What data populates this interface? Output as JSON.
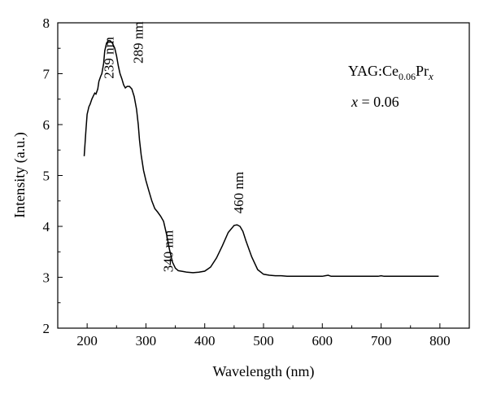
{
  "chart_data": {
    "type": "line",
    "title": "",
    "xlabel": "Wavelength (nm)",
    "ylabel": "Intensity (a.u.)",
    "xlim": [
      150,
      850
    ],
    "ylim": [
      2,
      8
    ],
    "x_ticks": [
      200,
      300,
      400,
      500,
      600,
      700,
      800
    ],
    "y_ticks": [
      2,
      3,
      4,
      5,
      6,
      7,
      8
    ],
    "grid": false,
    "legend": {
      "sample_prefix": "YAG:Ce",
      "sample_sub1": "0.06",
      "sample_mid": "Pr",
      "sample_sub2": "x",
      "x_var": "x",
      "x_eq": " = 0.06"
    },
    "annotations": [
      {
        "text": "239 nm",
        "x": 239,
        "y": 6.9
      },
      {
        "text": "289 nm",
        "x": 289,
        "y": 7.2
      },
      {
        "text": "340 nm",
        "x": 340,
        "y": 3.1
      },
      {
        "text": "460 nm",
        "x": 460,
        "y": 4.25
      }
    ],
    "series": [
      {
        "x": [
          195,
          198,
          200,
          203,
          205,
          208,
          210,
          213,
          215,
          218,
          220,
          223,
          225,
          228,
          230,
          233,
          236,
          239,
          243,
          247,
          250,
          253,
          256,
          259,
          262,
          265,
          268,
          272,
          276,
          280,
          284,
          287,
          289,
          292,
          296,
          300,
          305,
          310,
          315,
          320,
          325,
          330,
          335,
          340,
          345,
          350,
          355,
          360,
          365,
          370,
          380,
          390,
          400,
          410,
          420,
          430,
          440,
          450,
          455,
          460,
          465,
          470,
          480,
          490,
          500,
          510,
          520,
          530,
          540,
          550,
          560,
          570,
          580,
          590,
          600,
          605,
          610,
          615,
          620,
          640,
          660,
          680,
          695,
          700,
          705,
          710,
          730,
          750,
          770,
          790,
          798
        ],
        "y": [
          5.38,
          5.9,
          6.2,
          6.35,
          6.4,
          6.5,
          6.55,
          6.62,
          6.6,
          6.7,
          6.85,
          6.95,
          7.0,
          7.2,
          7.45,
          7.6,
          7.65,
          7.65,
          7.6,
          7.5,
          7.35,
          7.15,
          7.0,
          6.9,
          6.78,
          6.72,
          6.75,
          6.75,
          6.7,
          6.55,
          6.3,
          6.0,
          5.7,
          5.4,
          5.1,
          4.9,
          4.7,
          4.5,
          4.35,
          4.28,
          4.2,
          4.1,
          3.85,
          3.55,
          3.3,
          3.18,
          3.13,
          3.12,
          3.11,
          3.1,
          3.09,
          3.1,
          3.12,
          3.2,
          3.38,
          3.62,
          3.88,
          4.02,
          4.03,
          4.0,
          3.9,
          3.72,
          3.4,
          3.15,
          3.06,
          3.04,
          3.03,
          3.03,
          3.02,
          3.02,
          3.02,
          3.02,
          3.02,
          3.02,
          3.02,
          3.03,
          3.04,
          3.02,
          3.02,
          3.02,
          3.02,
          3.02,
          3.02,
          3.03,
          3.02,
          3.02,
          3.02,
          3.02,
          3.02,
          3.02,
          3.02
        ]
      }
    ]
  }
}
